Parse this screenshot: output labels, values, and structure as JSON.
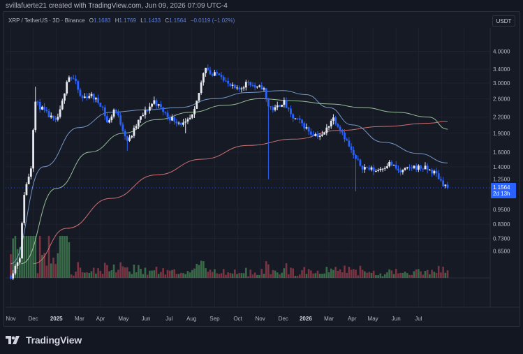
{
  "byline": "svillafuerte21 created with TradingView.com, Jun 09, 2026 07:09 UTC-4",
  "legend": {
    "symbol": "XRP / TetherUS · 3D · Binance",
    "open_label": "O",
    "open": "1.1683",
    "high_label": "H",
    "high": "1.1769",
    "low_label": "L",
    "low": "1.1433",
    "close_label": "C",
    "close": "1.1564",
    "change": "−0.0119 (−1.02%)"
  },
  "unit_button": "USDT",
  "brand": "TradingView",
  "price_tag": {
    "price": "1.1564",
    "countdown": "2d 13h"
  },
  "colors": {
    "background": "#131722",
    "panel": "#161a25",
    "grid": "#1f2330",
    "up_candle": "#e8eaf0",
    "down_candle": "#2962ff",
    "up_volume": "#3f7a4f",
    "down_volume": "#8c3a48",
    "ma_fast": "#7fa5d8",
    "ma_mid": "#a7d0a6",
    "ma_slow": "#e07a7a",
    "tag": "#2962ff"
  },
  "chart_data": {
    "type": "candlestick",
    "y_scale": "log",
    "ylim": [
      0.55,
      4.5
    ],
    "y_ticks": [
      "4.0000",
      "3.4000",
      "3.0000",
      "2.6000",
      "2.2000",
      "1.9000",
      "1.6000",
      "1.4000",
      "1.2500",
      "0.9500",
      "0.8300",
      "0.7300",
      "0.6500"
    ],
    "x_ticks": [
      "Nov",
      "Dec",
      "2025",
      "Mar",
      "Apr",
      "May",
      "Jun",
      "Jul",
      "Aug",
      "Sep",
      "Oct",
      "Nov",
      "Dec",
      "2026",
      "Mar",
      "Apr",
      "May",
      "Jun",
      "Jul"
    ],
    "last_price": 1.1564,
    "price_anchors": [
      [
        "2024-11-01",
        0.52
      ],
      [
        "2024-11-13",
        0.62
      ],
      [
        "2024-11-19",
        1.1
      ],
      [
        "2024-11-28",
        1.4
      ],
      [
        "2024-12-03",
        2.55
      ],
      [
        "2024-12-08",
        2.45
      ],
      [
        "2024-12-20",
        2.25
      ],
      [
        "2024-12-31",
        2.1
      ],
      [
        "2025-01-07",
        2.35
      ],
      [
        "2025-01-16",
        3.2
      ],
      [
        "2025-01-25",
        3.1
      ],
      [
        "2025-02-03",
        2.6
      ],
      [
        "2025-02-15",
        2.7
      ],
      [
        "2025-03-03",
        2.45
      ],
      [
        "2025-03-11",
        2.05
      ],
      [
        "2025-03-20",
        2.4
      ],
      [
        "2025-04-07",
        1.75
      ],
      [
        "2025-04-22",
        2.15
      ],
      [
        "2025-05-12",
        2.55
      ],
      [
        "2025-05-31",
        2.2
      ],
      [
        "2025-06-22",
        2.05
      ],
      [
        "2025-07-04",
        2.25
      ],
      [
        "2025-07-13",
        2.9
      ],
      [
        "2025-07-19",
        3.55
      ],
      [
        "2025-07-28",
        3.2
      ],
      [
        "2025-08-08",
        3.3
      ],
      [
        "2025-08-19",
        2.95
      ],
      [
        "2025-09-01",
        2.8
      ],
      [
        "2025-09-15",
        3.05
      ],
      [
        "2025-09-26",
        2.85
      ],
      [
        "2025-10-05",
        2.9
      ],
      [
        "2025-10-11",
        2.45
      ],
      [
        "2025-10-20",
        2.35
      ],
      [
        "2025-11-01",
        2.55
      ],
      [
        "2025-11-12",
        2.2
      ],
      [
        "2025-11-24",
        2.1
      ],
      [
        "2025-12-08",
        1.9
      ],
      [
        "2025-12-24",
        1.85
      ],
      [
        "2026-01-06",
        2.2
      ],
      [
        "2026-01-18",
        1.95
      ],
      [
        "2026-02-05",
        1.5
      ],
      [
        "2026-02-15",
        1.4
      ],
      [
        "2026-03-05",
        1.35
      ],
      [
        "2026-03-24",
        1.45
      ],
      [
        "2026-04-06",
        1.33
      ],
      [
        "2026-04-24",
        1.4
      ],
      [
        "2026-05-10",
        1.38
      ],
      [
        "2026-05-24",
        1.32
      ],
      [
        "2026-06-01",
        1.22
      ],
      [
        "2026-06-09",
        1.156
      ]
    ],
    "wick_spikes": [
      {
        "date": "2024-12-03",
        "high": 2.9
      },
      {
        "date": "2025-04-07",
        "low": 1.62
      },
      {
        "date": "2025-06-22",
        "low": 1.9
      },
      {
        "date": "2025-10-11",
        "low": 1.25
      },
      {
        "date": "2026-02-05",
        "low": 1.12
      }
    ],
    "moving_averages": [
      {
        "name": "fast",
        "color": "#7fa5d8",
        "points": [
          [
            "2024-11-01",
            0.58
          ],
          [
            "2024-12-15",
            1.4
          ],
          [
            "2025-01-31",
            2.0
          ],
          [
            "2025-03-15",
            2.3
          ],
          [
            "2025-05-01",
            2.35
          ],
          [
            "2025-06-15",
            2.4
          ],
          [
            "2025-07-31",
            2.6
          ],
          [
            "2025-09-15",
            2.75
          ],
          [
            "2025-10-31",
            2.8
          ],
          [
            "2025-12-01",
            2.7
          ],
          [
            "2026-01-01",
            2.4
          ],
          [
            "2026-02-01",
            2.05
          ],
          [
            "2026-03-15",
            1.75
          ],
          [
            "2026-05-01",
            1.58
          ],
          [
            "2026-06-09",
            1.45
          ]
        ]
      },
      {
        "name": "mid",
        "color": "#a7d0a6",
        "points": [
          [
            "2024-11-15",
            0.58
          ],
          [
            "2025-01-01",
            1.15
          ],
          [
            "2025-02-15",
            1.6
          ],
          [
            "2025-04-01",
            1.9
          ],
          [
            "2025-05-15",
            2.15
          ],
          [
            "2025-07-01",
            2.3
          ],
          [
            "2025-08-15",
            2.45
          ],
          [
            "2025-10-01",
            2.6
          ],
          [
            "2025-11-15",
            2.55
          ],
          [
            "2026-01-01",
            2.48
          ],
          [
            "2026-02-15",
            2.4
          ],
          [
            "2026-04-01",
            2.3
          ],
          [
            "2026-05-15",
            2.2
          ],
          [
            "2026-06-09",
            1.97
          ]
        ]
      },
      {
        "name": "slow",
        "color": "#e07a7a",
        "points": [
          [
            "2024-12-01",
            0.58
          ],
          [
            "2025-01-15",
            0.8
          ],
          [
            "2025-03-15",
            1.05
          ],
          [
            "2025-05-15",
            1.3
          ],
          [
            "2025-07-15",
            1.5
          ],
          [
            "2025-09-15",
            1.7
          ],
          [
            "2025-11-15",
            1.8
          ],
          [
            "2026-01-15",
            1.95
          ],
          [
            "2026-03-15",
            2.02
          ],
          [
            "2026-05-15",
            2.08
          ],
          [
            "2026-06-09",
            2.12
          ]
        ]
      }
    ]
  }
}
